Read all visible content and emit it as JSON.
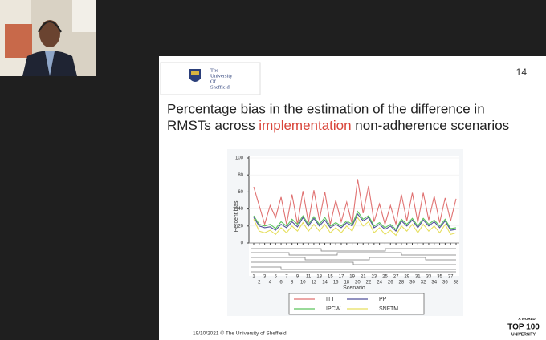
{
  "slide": {
    "logo": [
      "The",
      "University",
      "Of",
      "Sheffield."
    ],
    "number": "14",
    "title_line1": "Percentage bias in the estimation of the difference in",
    "title_before": "RMSTs across ",
    "title_highlight": "implementation",
    "title_after": " non-adherence scenarios",
    "footer": "19/10/2021 © The University of Sheffield",
    "badge": [
      "A WORLD",
      "TOP 100",
      "UNIVERSITY"
    ]
  },
  "chart_data": {
    "type": "line",
    "ylabel": "Percent bias",
    "xlabel": "Scenario",
    "categories": [
      "1",
      "2",
      "3",
      "4",
      "5",
      "6",
      "7",
      "8",
      "9",
      "10",
      "11",
      "12",
      "13",
      "14",
      "15",
      "16",
      "17",
      "18",
      "19",
      "20",
      "21",
      "22",
      "23",
      "24",
      "25",
      "26",
      "27",
      "28",
      "29",
      "30",
      "31",
      "32",
      "33",
      "34",
      "35",
      "36",
      "37",
      "38"
    ],
    "ylim": [
      0,
      100
    ],
    "yticks": [
      0,
      20,
      40,
      60,
      80,
      100
    ],
    "series": [
      {
        "name": "ITT",
        "color": "#e07272",
        "values": [
          66,
          44,
          22,
          44,
          30,
          54,
          22,
          57,
          22,
          61,
          24,
          62,
          27,
          60,
          22,
          50,
          25,
          48,
          22,
          75,
          35,
          67,
          25,
          46,
          22,
          44,
          22,
          57,
          26,
          59,
          24,
          59,
          27,
          55,
          24,
          53,
          26,
          52
        ]
      },
      {
        "name": "PP",
        "color": "#50509a",
        "values": [
          30,
          20,
          18,
          19,
          15,
          22,
          18,
          25,
          19,
          30,
          20,
          29,
          20,
          27,
          18,
          22,
          18,
          24,
          20,
          34,
          26,
          30,
          18,
          22,
          16,
          20,
          14,
          26,
          20,
          27,
          18,
          27,
          20,
          25,
          18,
          26,
          15,
          16
        ]
      },
      {
        "name": "IPCW",
        "color": "#5cc45c",
        "values": [
          32,
          22,
          20,
          22,
          17,
          25,
          20,
          28,
          22,
          32,
          22,
          31,
          22,
          30,
          20,
          24,
          20,
          26,
          22,
          37,
          28,
          32,
          20,
          24,
          18,
          22,
          16,
          28,
          22,
          29,
          20,
          29,
          22,
          27,
          20,
          28,
          17,
          18
        ]
      },
      {
        "name": "SNFTM",
        "color": "#e6df5e",
        "values": [
          28,
          14,
          12,
          15,
          10,
          18,
          12,
          20,
          14,
          24,
          14,
          22,
          14,
          22,
          12,
          18,
          12,
          20,
          14,
          30,
          20,
          25,
          12,
          18,
          10,
          15,
          9,
          20,
          14,
          22,
          12,
          22,
          14,
          20,
          12,
          22,
          10,
          12
        ]
      }
    ]
  }
}
